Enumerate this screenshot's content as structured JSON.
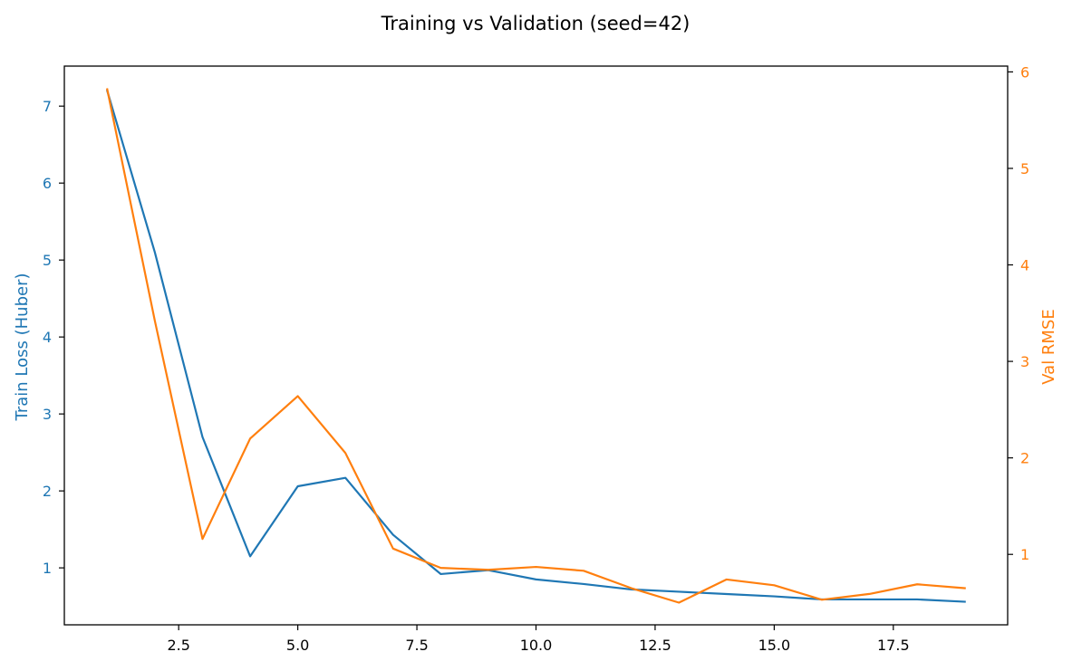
{
  "chart_data": {
    "type": "line",
    "title": "Training vs Validation (seed=42)",
    "xlim": [
      0.1,
      19.9
    ],
    "x_ticks": [
      2.5,
      5.0,
      7.5,
      10.0,
      12.5,
      15.0,
      17.5
    ],
    "x_tick_labels": [
      "2.5",
      "5.0",
      "7.5",
      "10.0",
      "12.5",
      "15.0",
      "17.5"
    ],
    "left_axis": {
      "label": "Train Loss (Huber)",
      "ylim": [
        0.26,
        7.52
      ],
      "ticks": [
        1,
        2,
        3,
        4,
        5,
        6,
        7
      ],
      "tick_labels": [
        "1",
        "2",
        "3",
        "4",
        "5",
        "6",
        "7"
      ],
      "color": "#1f77b4"
    },
    "right_axis": {
      "label": "Val RMSE",
      "ylim": [
        0.27,
        6.06
      ],
      "ticks": [
        1,
        2,
        3,
        4,
        5,
        6
      ],
      "tick_labels": [
        "1",
        "2",
        "3",
        "4",
        "5",
        "6"
      ],
      "color": "#ff7f0e"
    },
    "x": [
      1,
      2,
      3,
      4,
      5,
      6,
      7,
      8,
      9,
      10,
      11,
      12,
      13,
      14,
      15,
      16,
      17,
      18,
      19
    ],
    "series": [
      {
        "name": "Train Loss (Huber)",
        "axis": "left",
        "color": "#1f77b4",
        "values": [
          7.2,
          5.1,
          2.7,
          1.15,
          2.06,
          2.17,
          1.43,
          0.92,
          0.97,
          0.85,
          0.79,
          0.72,
          0.69,
          0.66,
          0.63,
          0.59,
          0.59,
          0.59,
          0.56
        ]
      },
      {
        "name": "Val RMSE",
        "axis": "right",
        "color": "#ff7f0e",
        "values": [
          5.82,
          3.42,
          1.16,
          2.2,
          2.64,
          2.05,
          1.06,
          0.86,
          0.84,
          0.87,
          0.83,
          0.65,
          0.5,
          0.74,
          0.68,
          0.53,
          0.59,
          0.69,
          0.65
        ]
      }
    ],
    "grid": false,
    "legend": "none"
  }
}
